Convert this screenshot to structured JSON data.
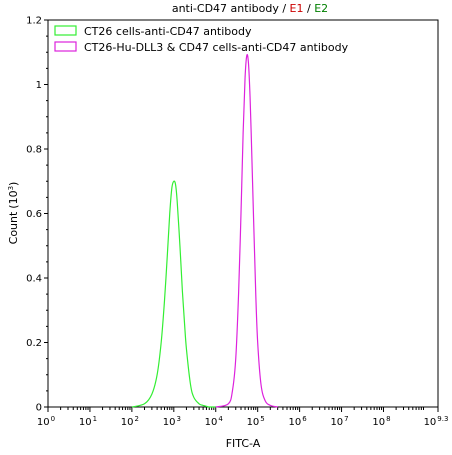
{
  "chart_data": {
    "type": "line",
    "title": {
      "main": "anti-CD47 antibody",
      "sep1": " / ",
      "e1": "E1",
      "sep2": " / ",
      "e2": "E2",
      "e1_color": "#cc0000",
      "e2_color": "#008000"
    },
    "xlabel": "FITC-A",
    "ylabel": "Count",
    "ylabel_unit_base": "(10",
    "ylabel_unit_exp": "3",
    "ylabel_unit_close": ")",
    "x_scale": "log",
    "xlim": [
      1,
      1995262315
    ],
    "ylim": [
      0,
      1.2
    ],
    "x_ticks": [
      {
        "base": "10",
        "exp": "0",
        "value": 1
      },
      {
        "base": "10",
        "exp": "1",
        "value": 10
      },
      {
        "base": "10",
        "exp": "2",
        "value": 100
      },
      {
        "base": "10",
        "exp": "3",
        "value": 1000
      },
      {
        "base": "10",
        "exp": "4",
        "value": 10000
      },
      {
        "base": "10",
        "exp": "5",
        "value": 100000
      },
      {
        "base": "10",
        "exp": "6",
        "value": 1000000
      },
      {
        "base": "10",
        "exp": "7",
        "value": 10000000
      },
      {
        "base": "10",
        "exp": "8",
        "value": 100000000
      },
      {
        "base": "10",
        "exp": "9.3",
        "value": 1995262315
      }
    ],
    "y_ticks": [
      {
        "label": "0",
        "value": 0
      },
      {
        "label": "0.2",
        "value": 0.2
      },
      {
        "label": "0.4",
        "value": 0.4
      },
      {
        "label": "0.6",
        "value": 0.6
      },
      {
        "label": "0.8",
        "value": 0.8
      },
      {
        "label": "1",
        "value": 1.0
      },
      {
        "label": "1.2",
        "value": 1.2
      }
    ],
    "legend_position": "top-left",
    "series": [
      {
        "name": "CT26 cells-anti-CD47 antibody",
        "color": "#33ee33",
        "x": [
          100,
          200,
          300,
          400,
          500,
          600,
          700,
          800,
          900,
          1000,
          1100,
          1200,
          1400,
          1600,
          1800,
          2000,
          2500,
          3000,
          4000,
          5000,
          7000,
          10000
        ],
        "y": [
          0.0,
          0.01,
          0.04,
          0.1,
          0.2,
          0.33,
          0.47,
          0.6,
          0.68,
          0.7,
          0.69,
          0.64,
          0.5,
          0.36,
          0.26,
          0.18,
          0.07,
          0.03,
          0.01,
          0.005,
          0.0,
          0.0
        ]
      },
      {
        "name": "CT26-Hu-DLL3 & CD47 cells-anti-CD47 antibody",
        "color": "#dd22dd",
        "x": [
          10000,
          20000,
          25000,
          30000,
          35000,
          40000,
          45000,
          50000,
          55000,
          60000,
          65000,
          70000,
          80000,
          90000,
          100000,
          120000,
          150000,
          200000,
          300000
        ],
        "y": [
          0.0,
          0.01,
          0.05,
          0.15,
          0.35,
          0.6,
          0.85,
          1.02,
          1.09,
          1.07,
          0.98,
          0.85,
          0.58,
          0.35,
          0.2,
          0.07,
          0.02,
          0.005,
          0.0
        ]
      }
    ]
  }
}
